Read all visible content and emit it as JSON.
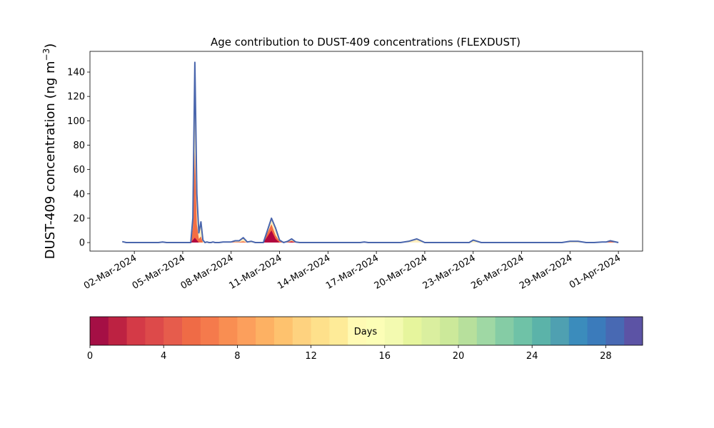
{
  "chart_data": {
    "type": "area",
    "title": "Age contribution to DUST-409 concentrations (FLEXDUST)",
    "ylabel": "DUST-409 concentration (ng m",
    "ylabel_sup": "−3",
    "ylabel_close": ")",
    "xlabel": "",
    "x_type": "date",
    "xlim": [
      "2024-02-28T06:00",
      "2024-04-02T12:00"
    ],
    "ylim": [
      -7,
      157
    ],
    "y_ticks": [
      0,
      20,
      40,
      60,
      80,
      100,
      120,
      140
    ],
    "x_ticks": [
      {
        "date": "2024-03-02",
        "label": "02-Mar-2024"
      },
      {
        "date": "2024-03-05",
        "label": "05-Mar-2024"
      },
      {
        "date": "2024-03-08",
        "label": "08-Mar-2024"
      },
      {
        "date": "2024-03-11",
        "label": "11-Mar-2024"
      },
      {
        "date": "2024-03-14",
        "label": "14-Mar-2024"
      },
      {
        "date": "2024-03-17",
        "label": "17-Mar-2024"
      },
      {
        "date": "2024-03-20",
        "label": "20-Mar-2024"
      },
      {
        "date": "2024-03-23",
        "label": "23-Mar-2024"
      },
      {
        "date": "2024-03-26",
        "label": "26-Mar-2024"
      },
      {
        "date": "2024-03-29",
        "label": "29-Mar-2024"
      },
      {
        "date": "2024-04-01",
        "label": "01-Apr-2024"
      }
    ],
    "series_total": {
      "x": [
        "2024-03-01T06:00",
        "2024-03-01T12:00",
        "2024-03-03T12:00",
        "2024-03-03T18:00",
        "2024-03-04T00:00",
        "2024-03-05T12:00",
        "2024-03-05T15:00",
        "2024-03-05T18:00",
        "2024-03-05T21:00",
        "2024-03-06T00:00",
        "2024-03-06T03:00",
        "2024-03-06T06:00",
        "2024-03-06T09:00",
        "2024-03-06T12:00",
        "2024-03-06T15:00",
        "2024-03-06T18:00",
        "2024-03-06T21:00",
        "2024-03-07T00:00",
        "2024-03-07T06:00",
        "2024-03-07T12:00",
        "2024-03-08T00:00",
        "2024-03-08T06:00",
        "2024-03-08T12:00",
        "2024-03-08T18:00",
        "2024-03-09T00:00",
        "2024-03-09T06:00",
        "2024-03-09T12:00",
        "2024-03-09T18:00",
        "2024-03-10T00:00",
        "2024-03-10T06:00",
        "2024-03-10T12:00",
        "2024-03-10T18:00",
        "2024-03-11T00:00",
        "2024-03-11T06:00",
        "2024-03-11T12:00",
        "2024-03-11T18:00",
        "2024-03-12T00:00",
        "2024-03-12T06:00",
        "2024-03-12T12:00",
        "2024-03-12T18:00",
        "2024-03-13T00:00",
        "2024-03-13T06:00",
        "2024-03-14T00:00",
        "2024-03-16T00:00",
        "2024-03-16T06:00",
        "2024-03-16T12:00",
        "2024-03-16T18:00",
        "2024-03-18T00:00",
        "2024-03-18T12:00",
        "2024-03-19T00:00",
        "2024-03-19T12:00",
        "2024-03-20T00:00",
        "2024-03-22T00:00",
        "2024-03-22T12:00",
        "2024-03-22T18:00",
        "2024-03-23T00:00",
        "2024-03-23T12:00",
        "2024-03-25T00:00",
        "2024-03-27T00:00",
        "2024-03-27T12:00",
        "2024-03-28T00:00",
        "2024-03-28T12:00",
        "2024-03-29T00:00",
        "2024-03-29T12:00",
        "2024-03-30T00:00",
        "2024-03-30T12:00",
        "2024-03-31T00:00",
        "2024-03-31T06:00",
        "2024-03-31T12:00",
        "2024-04-01T00:00"
      ],
      "y": [
        0.8,
        0,
        0,
        0.5,
        0,
        0,
        20,
        148,
        40,
        8,
        17,
        2,
        0,
        0.5,
        0,
        0,
        0.5,
        0,
        0,
        0.5,
        0.5,
        1.5,
        1.5,
        4,
        0.5,
        1,
        0,
        0,
        0,
        10,
        20,
        12,
        2,
        0,
        1,
        3,
        0.5,
        0,
        0,
        0,
        0,
        0,
        0,
        0,
        0.5,
        0,
        0,
        0,
        0,
        1,
        3,
        0,
        0,
        0,
        0,
        2,
        0,
        0,
        0,
        0,
        0,
        0,
        1,
        1,
        0,
        0,
        0.5,
        0.5,
        1.5,
        0
      ]
    },
    "series_young": {
      "x": [
        "2024-03-05T12:00",
        "2024-03-05T15:00",
        "2024-03-05T18:00",
        "2024-03-05T21:00",
        "2024-03-06T00:00",
        "2024-03-06T03:00",
        "2024-03-06T06:00",
        "2024-03-08T12:00",
        "2024-03-08T18:00",
        "2024-03-09T00:00",
        "2024-03-10T00:00",
        "2024-03-10T06:00",
        "2024-03-10T12:00",
        "2024-03-10T18:00",
        "2024-03-11T00:00",
        "2024-03-11T12:00",
        "2024-03-11T18:00",
        "2024-03-12T00:00",
        "2024-03-30T12:00",
        "2024-03-31T00:00",
        "2024-03-31T12:00",
        "2024-04-01T00:00"
      ],
      "y": [
        0,
        12,
        75,
        15,
        3,
        5,
        0,
        0.5,
        1,
        0,
        0,
        8,
        15,
        6,
        1,
        0.5,
        1.5,
        0,
        0,
        0.5,
        1,
        0
      ]
    },
    "series_fresh": {
      "x": [
        "2024-03-05T12:00",
        "2024-03-05T18:00",
        "2024-03-06T00:00",
        "2024-03-10T00:00",
        "2024-03-10T06:00",
        "2024-03-10T12:00",
        "2024-03-10T18:00",
        "2024-03-11T00:00",
        "2024-03-11T12:00",
        "2024-03-11T18:00",
        "2024-03-12T00:00"
      ],
      "y": [
        0,
        4,
        0,
        0,
        5,
        10,
        3,
        0,
        0,
        0.8,
        0
      ]
    },
    "colors": {
      "total_line": "#4a66ad",
      "total_fill": "#ffe08a",
      "young_fill": "#f46d43",
      "fresh_fill": "#b2063f"
    },
    "colorbar": {
      "label": "Days",
      "range": [
        0,
        30
      ],
      "ticks": [
        0,
        4,
        8,
        12,
        16,
        20,
        24,
        28
      ],
      "colors": [
        "#a50f45",
        "#bd2242",
        "#d43a47",
        "#dd4a4a",
        "#e65c4c",
        "#ef6b46",
        "#f57a4c",
        "#f98e52",
        "#fc9f5c",
        "#fdb163",
        "#fec26e",
        "#fed27f",
        "#fee08b",
        "#feeb98",
        "#fffab4",
        "#fcfeb6",
        "#f3fab0",
        "#e6f59d",
        "#daef9f",
        "#cce99a",
        "#b7e09c",
        "#9fd8a4",
        "#85cca5",
        "#6fc2a7",
        "#5bb3a9",
        "#4fa0b1",
        "#3b8cbc",
        "#3b7bbb",
        "#4869b3",
        "#5c53a5"
      ]
    }
  }
}
